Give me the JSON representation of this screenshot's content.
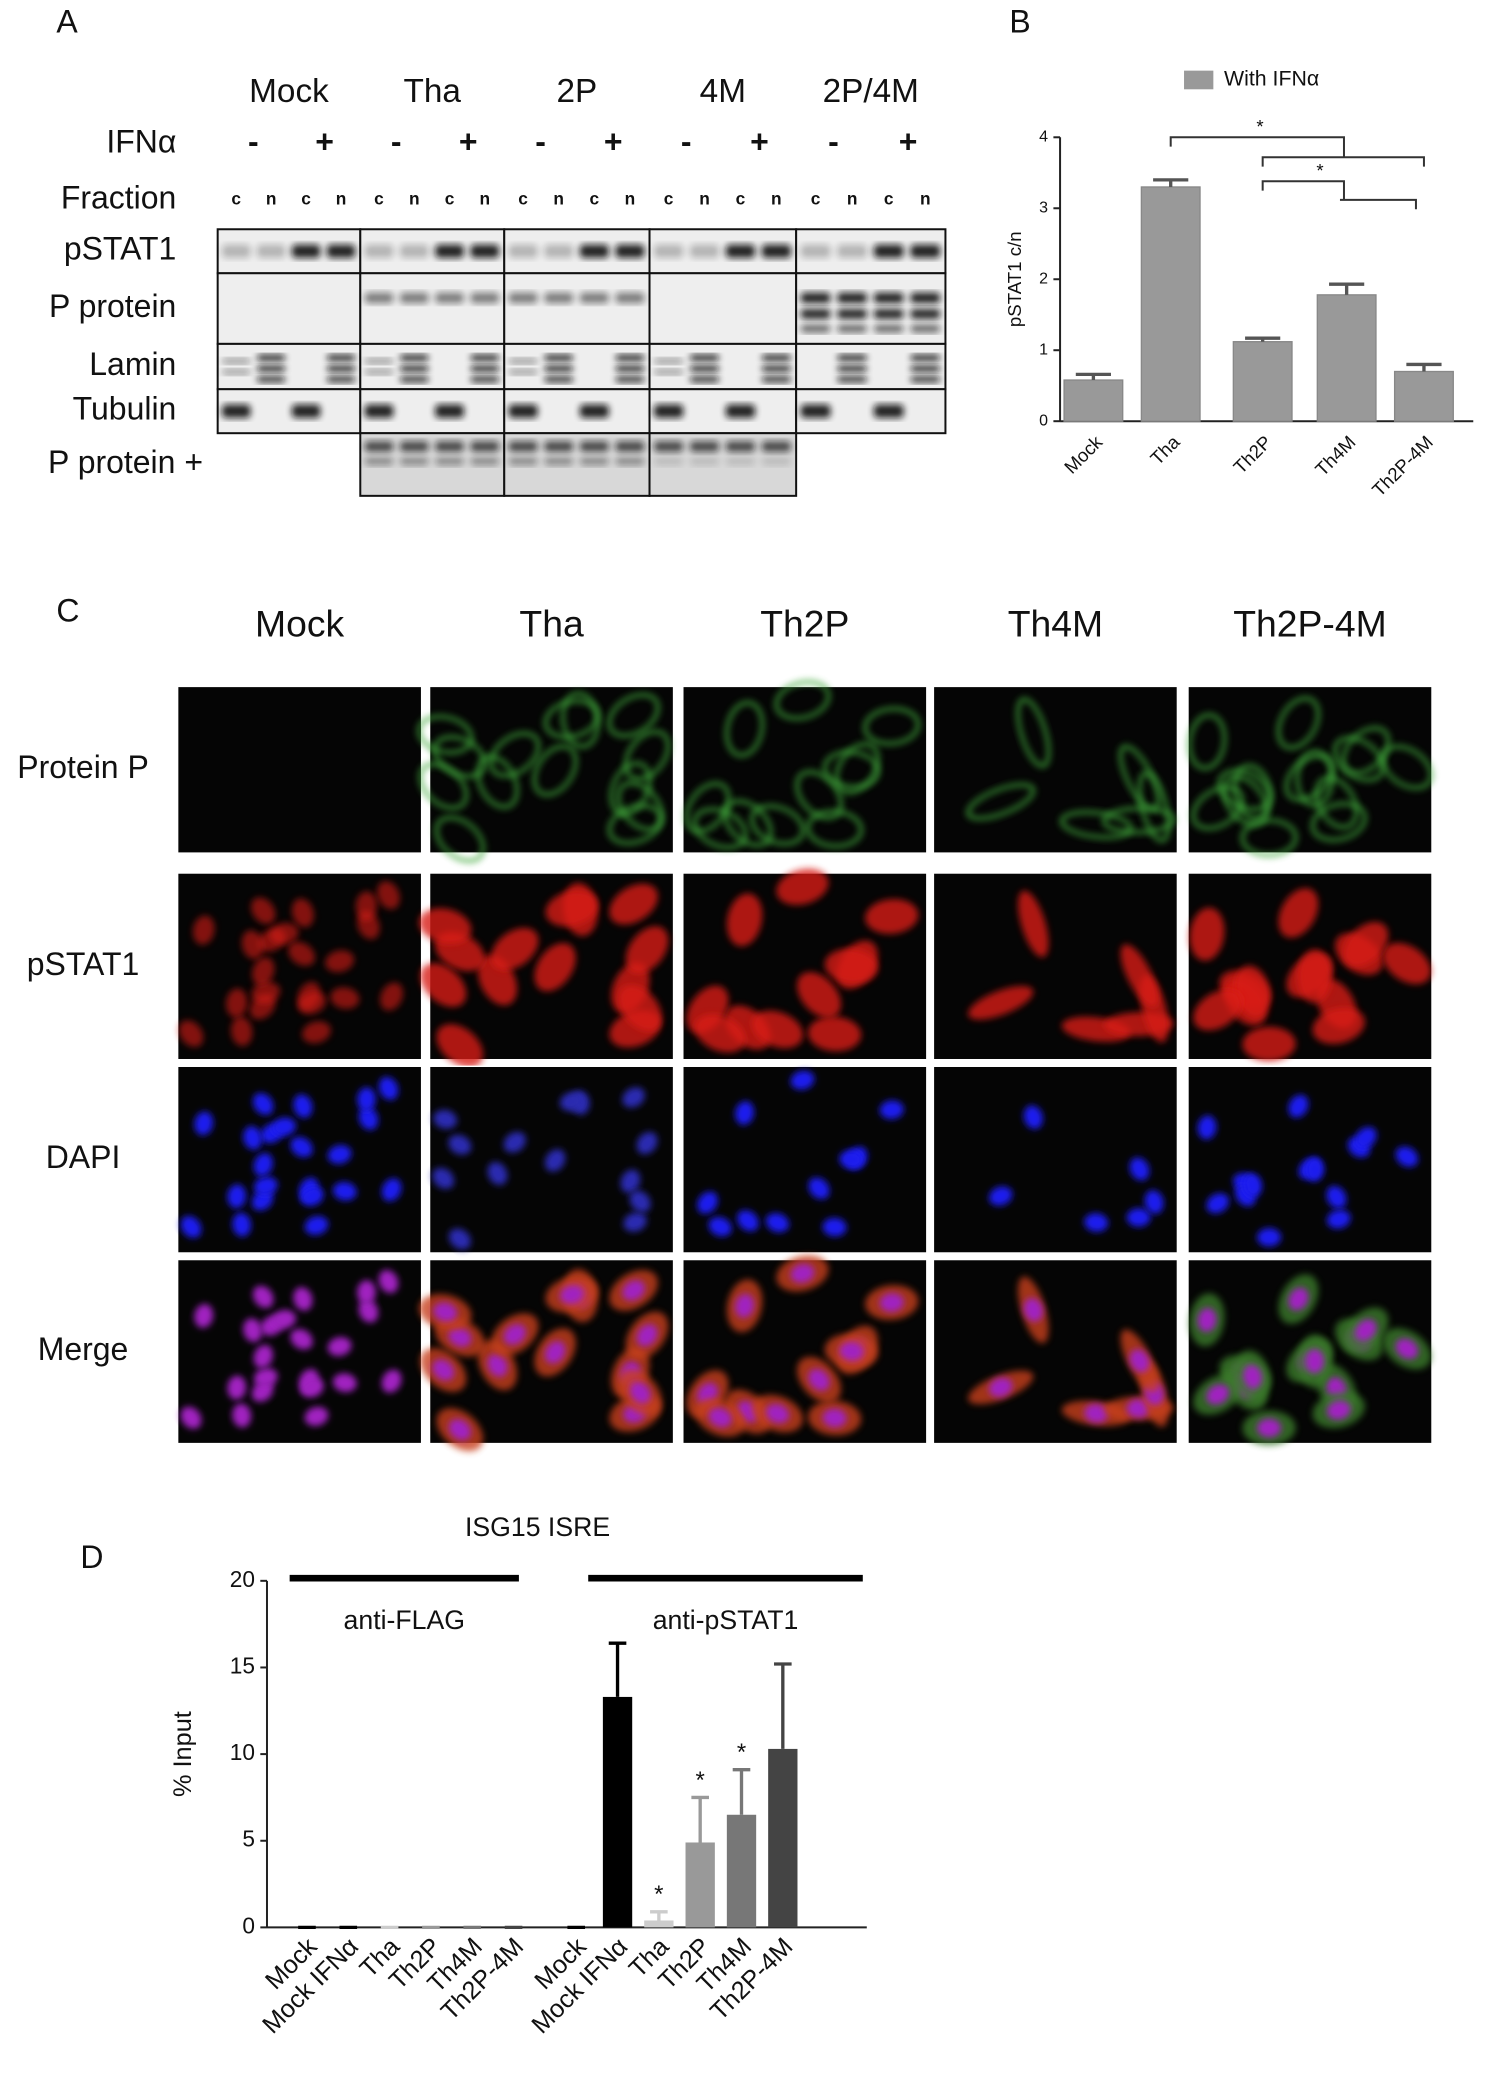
{
  "panel_labels": [
    "A",
    "B",
    "C",
    "D"
  ],
  "blot": {
    "groups": [
      "Mock",
      "Tha",
      "2P",
      "4M",
      "2P/4M"
    ],
    "treatment_label": "IFNα",
    "treatment_levels": [
      "-",
      "+"
    ],
    "fraction_label": "Fraction",
    "fractions": [
      "c",
      "n"
    ],
    "rows": [
      "pSTAT1",
      "P protein",
      "Lamin",
      "Tubulin",
      "P protein +"
    ]
  },
  "microscopy": {
    "columns": [
      "Mock",
      "Tha",
      "Th2P",
      "Th4M",
      "Th2P-4M"
    ],
    "rows": [
      "Protein P",
      "pSTAT1",
      "DAPI",
      "Merge"
    ]
  },
  "chart_data": [
    {
      "type": "bar",
      "categories": [
        "Mock",
        "Tha",
        "Th2P",
        "Th4M",
        "Th2P-4M"
      ],
      "series": [
        {
          "name": "With IFNα",
          "color": "#999999",
          "values": [
            0.58,
            3.3,
            1.12,
            1.78,
            0.7
          ],
          "errors": [
            0.08,
            0.1,
            0.05,
            0.15,
            0.1
          ]
        }
      ],
      "ylabel": "pSTAT1 c/n",
      "ylim": [
        0,
        4
      ],
      "yticks": [
        0,
        1,
        2,
        3,
        4
      ],
      "annotations": [
        "*",
        "*"
      ]
    },
    {
      "type": "bar",
      "title": "ISG15 ISRE",
      "groups": [
        "anti-FLAG",
        "anti-pSTAT1"
      ],
      "categories": [
        "Mock",
        "Mock IFNα",
        "Tha",
        "Th2P",
        "Th4M",
        "Th2P-4M",
        "Mock",
        "Mock IFNα",
        "Tha",
        "Th2P",
        "Th4M",
        "Th2P-4M"
      ],
      "values": [
        0,
        0,
        0,
        0,
        0,
        0,
        0,
        13.3,
        0.4,
        4.9,
        6.5,
        10.3
      ],
      "errors": [
        0,
        0,
        0,
        0,
        0,
        0,
        0,
        3.1,
        0.5,
        2.6,
        2.6,
        4.9
      ],
      "colors": [
        "#000000",
        "#000000",
        "#cccccc",
        "#999999",
        "#777777",
        "#444444",
        "#000000",
        "#000000",
        "#cccccc",
        "#999999",
        "#777777",
        "#444444"
      ],
      "ylabel": "% Input",
      "ylim": [
        0,
        20
      ],
      "yticks": [
        0,
        5,
        10,
        15,
        20
      ],
      "annotations": [
        "*",
        "*",
        "*"
      ]
    }
  ]
}
